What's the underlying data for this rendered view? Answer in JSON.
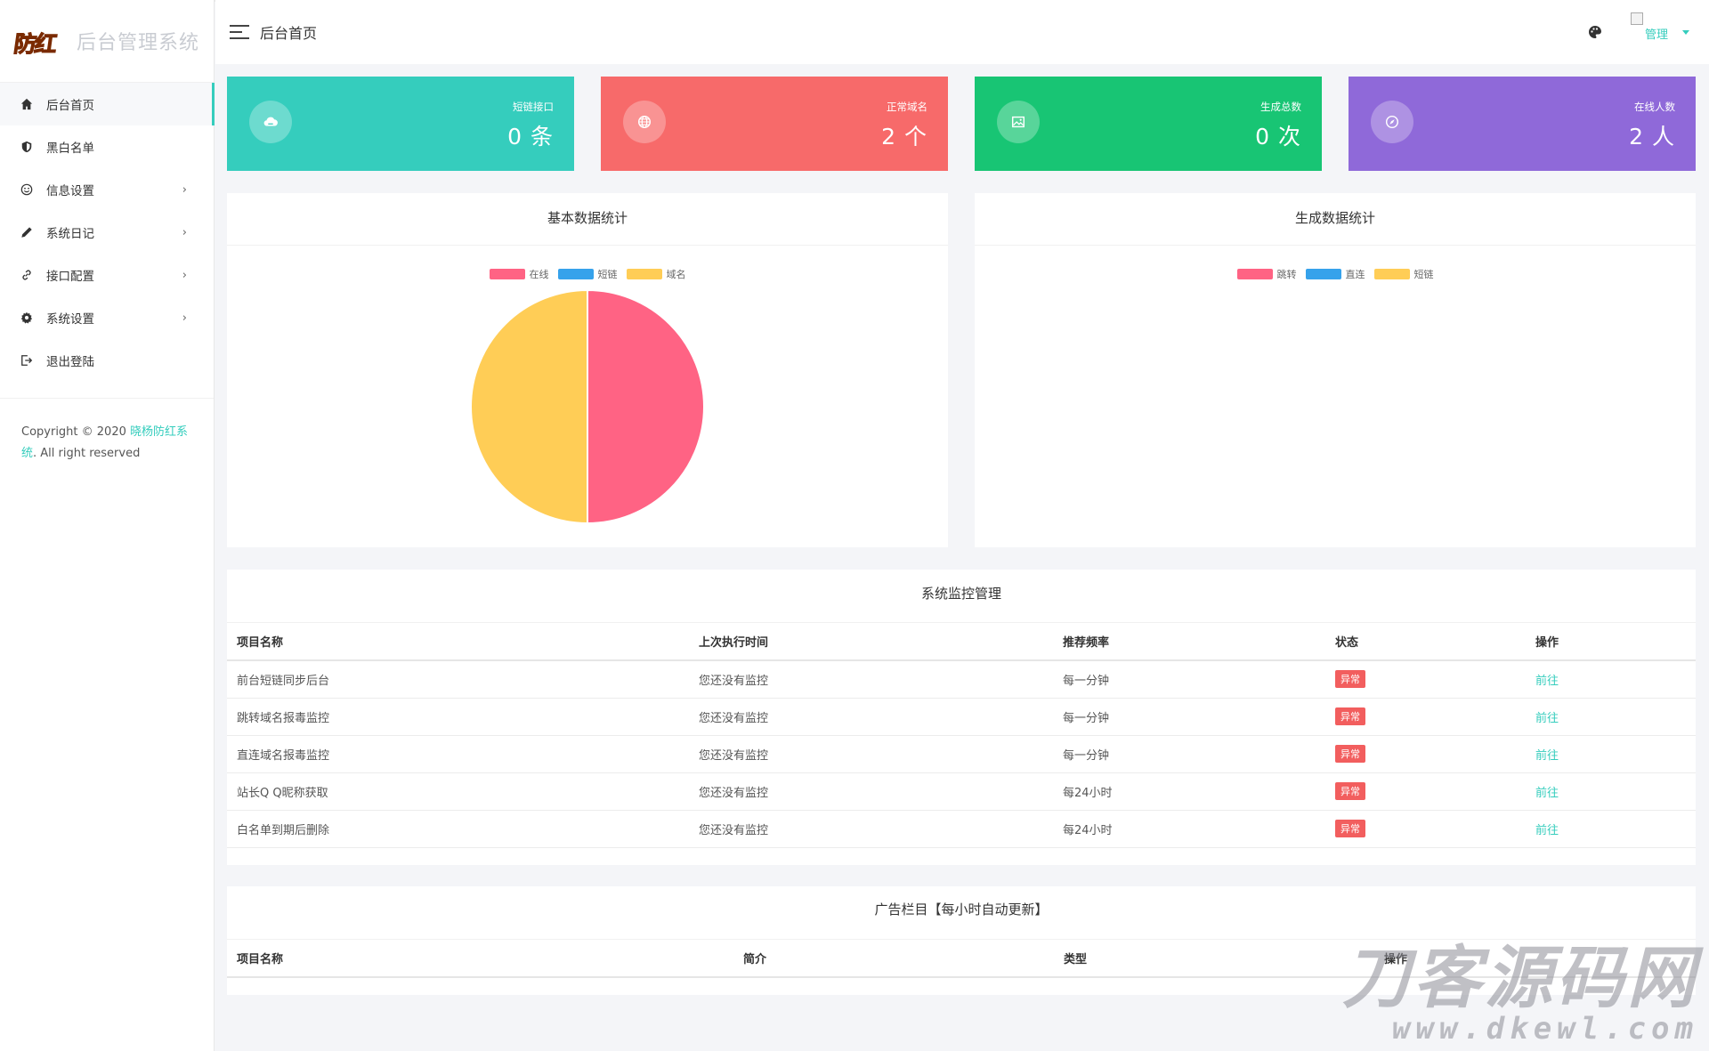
{
  "sidebar": {
    "logo_mark": "防红",
    "logo_title": "后台管理系统",
    "items": [
      {
        "label": "后台首页",
        "icon": "home-icon",
        "has_arrow": false
      },
      {
        "label": "黑白名单",
        "icon": "shield-icon",
        "has_arrow": false
      },
      {
        "label": "信息设置",
        "icon": "smile-icon",
        "has_arrow": true
      },
      {
        "label": "系统日记",
        "icon": "pencil-icon",
        "has_arrow": true
      },
      {
        "label": "接口配置",
        "icon": "link-icon",
        "has_arrow": true
      },
      {
        "label": "系统设置",
        "icon": "gear-icon",
        "has_arrow": true
      },
      {
        "label": "退出登陆",
        "icon": "logout-icon",
        "has_arrow": false
      }
    ],
    "arrow": "›",
    "copyright_prefix": "Copyright © 2020 ",
    "copyright_brand": "晓杨防红系统",
    "copyright_suffix": ". All right reserved"
  },
  "header": {
    "title": "后台首页",
    "user_name": "管理"
  },
  "stats": [
    {
      "label": "短链接口",
      "value": "0 条",
      "color": "#35cdbd",
      "icon": "cloud-icon"
    },
    {
      "label": "正常域名",
      "value": "2 个",
      "color": "#f76a6a",
      "icon": "globe-icon"
    },
    {
      "label": "生成总数",
      "value": "0 次",
      "color": "#18c574",
      "icon": "image-icon"
    },
    {
      "label": "在线人数",
      "value": "2 人",
      "color": "#8f69d9",
      "icon": "compass-icon"
    }
  ],
  "basic_chart": {
    "title": "基本数据统计",
    "legend": [
      {
        "name": "在线",
        "color": "#ff6384"
      },
      {
        "name": "短链",
        "color": "#36a2eb"
      },
      {
        "name": "域名",
        "color": "#ffcd56"
      }
    ]
  },
  "gen_chart": {
    "title": "生成数据统计",
    "legend": [
      {
        "name": "跳转",
        "color": "#ff6384"
      },
      {
        "name": "直连",
        "color": "#36a2eb"
      },
      {
        "name": "短链",
        "color": "#ffcd56"
      }
    ]
  },
  "chart_data": [
    {
      "type": "pie",
      "title": "基本数据统计",
      "categories": [
        "在线",
        "短链",
        "域名"
      ],
      "values": [
        2,
        0,
        2
      ],
      "colors": [
        "#ff6384",
        "#36a2eb",
        "#ffcd56"
      ],
      "legend": "top"
    },
    {
      "type": "pie",
      "title": "生成数据统计",
      "categories": [
        "跳转",
        "直连",
        "短链"
      ],
      "values": [
        0,
        0,
        0
      ],
      "colors": [
        "#ff6384",
        "#36a2eb",
        "#ffcd56"
      ],
      "legend": "top"
    }
  ],
  "monitor": {
    "title": "系统监控管理",
    "columns": [
      "项目名称",
      "上次执行时间",
      "推荐频率",
      "状态",
      "操作"
    ],
    "rows": [
      {
        "name": "前台短链同步后台",
        "last": "您还没有监控",
        "freq": "每一分钟",
        "status": "异常",
        "action": "前往"
      },
      {
        "name": "跳转域名报毒监控",
        "last": "您还没有监控",
        "freq": "每一分钟",
        "status": "异常",
        "action": "前往"
      },
      {
        "name": "直连域名报毒监控",
        "last": "您还没有监控",
        "freq": "每一分钟",
        "status": "异常",
        "action": "前往"
      },
      {
        "name": "站长Q Q昵称获取",
        "last": "您还没有监控",
        "freq": "每24小时",
        "status": "异常",
        "action": "前往"
      },
      {
        "name": "白名单到期后删除",
        "last": "您还没有监控",
        "freq": "每24小时",
        "status": "异常",
        "action": "前往"
      }
    ]
  },
  "ads": {
    "title": "广告栏目【每小时自动更新】",
    "columns": [
      "项目名称",
      "简介",
      "类型",
      "操作"
    ]
  },
  "watermark": {
    "line1": "刀客源码网",
    "line2": "www.dkewl.com"
  }
}
